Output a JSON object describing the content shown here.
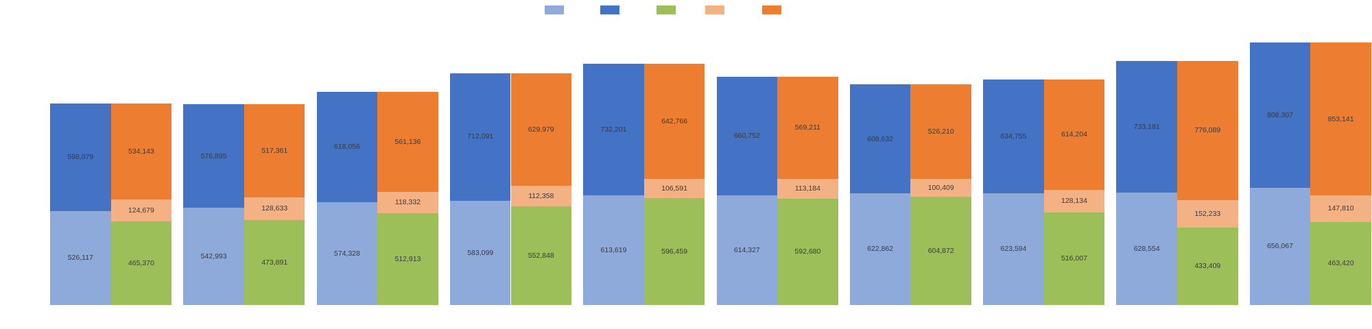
{
  "colors": {
    "light_blue": "#8EAADB",
    "dark_blue": "#4472C4",
    "green": "#9DBF5A",
    "peach": "#F4B183",
    "orange": "#ED7D31",
    "label_text": "#3a3a3a",
    "background": "#ffffff"
  },
  "legend": {
    "swatches": [
      {
        "name": "light-blue",
        "color": "#8EAADB"
      },
      {
        "name": "dark-blue",
        "color": "#4472C4"
      },
      {
        "name": "green",
        "color": "#9DBF5A"
      },
      {
        "name": "peach",
        "color": "#F4B183"
      },
      {
        "name": "orange",
        "color": "#ED7D31"
      }
    ]
  },
  "chart_data": {
    "type": "bar",
    "subtype": "paired-stacked-columns",
    "legend_position": "top-center",
    "grid": false,
    "axes_labels_visible": false,
    "value_labels_visible": true,
    "ylim": [
      0,
      1600000
    ],
    "left_stack_order": [
      "light_blue",
      "dark_blue"
    ],
    "right_stack_order": [
      "green",
      "peach",
      "orange"
    ],
    "pairs": [
      {
        "left_stack": {
          "light_blue": 526117,
          "dark_blue": 598079
        },
        "right_stack": {
          "green": 465370,
          "peach": 124679,
          "orange": 534143
        }
      },
      {
        "left_stack": {
          "light_blue": 542993,
          "dark_blue": 576895
        },
        "right_stack": {
          "green": 473891,
          "peach": 128633,
          "orange": 517361
        }
      },
      {
        "left_stack": {
          "light_blue": 574328,
          "dark_blue": 618056
        },
        "right_stack": {
          "green": 512913,
          "peach": 118332,
          "orange": 561136
        }
      },
      {
        "left_stack": {
          "light_blue": 583099,
          "dark_blue": 712091
        },
        "right_stack": {
          "green": 552848,
          "peach": 112358,
          "orange": 629979
        }
      },
      {
        "left_stack": {
          "light_blue": 613619,
          "dark_blue": 732201
        },
        "right_stack": {
          "green": 596459,
          "peach": 106591,
          "orange": 642766
        }
      },
      {
        "left_stack": {
          "light_blue": 614327,
          "dark_blue": 660752
        },
        "right_stack": {
          "green": 592680,
          "peach": 113184,
          "orange": 569211
        }
      },
      {
        "left_stack": {
          "light_blue": 622862,
          "dark_blue": 608632
        },
        "right_stack": {
          "green": 604872,
          "peach": 100409,
          "orange": 526210
        }
      },
      {
        "left_stack": {
          "light_blue": 623594,
          "dark_blue": 634755
        },
        "right_stack": {
          "green": 516007,
          "peach": 128134,
          "orange": 614204
        }
      },
      {
        "left_stack": {
          "light_blue": 628554,
          "dark_blue": 733181
        },
        "right_stack": {
          "green": 433409,
          "peach": 152233,
          "orange": 776089
        }
      },
      {
        "left_stack": {
          "light_blue": 656067,
          "dark_blue": 808307
        },
        "right_stack": {
          "green": 463420,
          "peach": 147810,
          "orange": 853141
        }
      }
    ]
  }
}
